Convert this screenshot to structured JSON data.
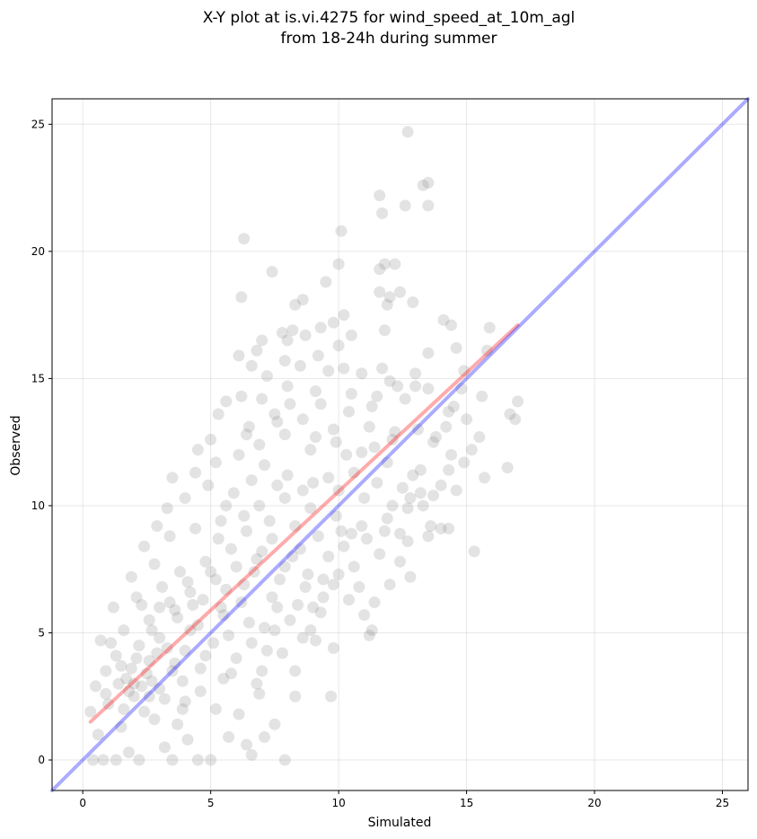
{
  "chart_data": {
    "type": "scatter",
    "title_lines": [
      "X-Y plot at is.vi.4275 for wind_speed_at_10m_agl",
      "from 18-24h during summer"
    ],
    "xlabel": "Simulated",
    "ylabel": "Observed",
    "xlim": [
      -1.2,
      26
    ],
    "ylim": [
      -1.2,
      26
    ],
    "xticks": [
      0,
      5,
      10,
      15,
      20,
      25
    ],
    "yticks": [
      0,
      5,
      10,
      15,
      20,
      25
    ],
    "grid": true,
    "series": [
      {
        "kind": "points",
        "color": "#808080",
        "points": [
          [
            12.7,
            24.7
          ],
          [
            13.5,
            22.7
          ],
          [
            13.3,
            22.6
          ],
          [
            11.6,
            22.2
          ],
          [
            12.6,
            21.8
          ],
          [
            13.5,
            21.8
          ],
          [
            11.7,
            21.5
          ],
          [
            10.1,
            20.8
          ],
          [
            6.3,
            20.5
          ],
          [
            11.8,
            19.5
          ],
          [
            12.2,
            19.5
          ],
          [
            10.0,
            19.5
          ],
          [
            7.4,
            19.2
          ],
          [
            11.6,
            19.3
          ],
          [
            9.5,
            18.8
          ],
          [
            11.6,
            18.4
          ],
          [
            12.4,
            18.4
          ],
          [
            6.2,
            18.2
          ],
          [
            8.6,
            18.1
          ],
          [
            12.0,
            18.2
          ],
          [
            8.3,
            17.9
          ],
          [
            12.9,
            18.0
          ],
          [
            10.2,
            17.5
          ],
          [
            11.9,
            17.9
          ],
          [
            14.1,
            17.3
          ],
          [
            14.4,
            17.1
          ],
          [
            15.9,
            17.0
          ],
          [
            11.8,
            16.9
          ],
          [
            8.2,
            16.9
          ],
          [
            8.7,
            16.7
          ],
          [
            9.8,
            17.2
          ],
          [
            7.8,
            16.8
          ],
          [
            9.3,
            17.0
          ],
          [
            7.0,
            16.5
          ],
          [
            8.0,
            16.5
          ],
          [
            10.5,
            16.7
          ],
          [
            13.5,
            16.0
          ],
          [
            14.6,
            16.2
          ],
          [
            6.8,
            16.1
          ],
          [
            6.1,
            15.9
          ],
          [
            10.0,
            16.3
          ],
          [
            6.6,
            15.5
          ],
          [
            9.2,
            15.9
          ],
          [
            7.9,
            15.7
          ],
          [
            10.2,
            15.4
          ],
          [
            9.6,
            15.3
          ],
          [
            11.7,
            15.4
          ],
          [
            12.0,
            14.9
          ],
          [
            13.0,
            15.2
          ],
          [
            14.9,
            15.3
          ],
          [
            15.6,
            14.3
          ],
          [
            17.0,
            14.1
          ],
          [
            16.7,
            13.6
          ],
          [
            16.9,
            13.4
          ],
          [
            15.5,
            12.7
          ],
          [
            15.2,
            12.2
          ],
          [
            14.5,
            13.9
          ],
          [
            14.3,
            13.7
          ],
          [
            13.5,
            14.6
          ],
          [
            13.0,
            14.7
          ],
          [
            12.6,
            14.2
          ],
          [
            11.5,
            14.3
          ],
          [
            10.5,
            14.4
          ],
          [
            9.1,
            14.5
          ],
          [
            8.0,
            14.7
          ],
          [
            7.0,
            14.2
          ],
          [
            6.2,
            14.3
          ],
          [
            5.6,
            14.1
          ],
          [
            5.3,
            13.6
          ],
          [
            6.5,
            13.1
          ],
          [
            7.6,
            13.3
          ],
          [
            8.6,
            13.4
          ],
          [
            9.8,
            13.0
          ],
          [
            11.2,
            13.1
          ],
          [
            12.2,
            12.9
          ],
          [
            13.7,
            12.5
          ],
          [
            14.4,
            12.0
          ],
          [
            14.9,
            11.7
          ],
          [
            15.7,
            11.1
          ],
          [
            16.6,
            11.5
          ],
          [
            14.0,
            10.8
          ],
          [
            13.7,
            10.4
          ],
          [
            13.2,
            10.5
          ],
          [
            12.8,
            10.3
          ],
          [
            13.6,
            9.2
          ],
          [
            14.0,
            9.1
          ],
          [
            14.3,
            9.1
          ],
          [
            13.5,
            8.8
          ],
          [
            12.7,
            8.6
          ],
          [
            12.4,
            7.8
          ],
          [
            12.8,
            7.2
          ],
          [
            12.0,
            6.9
          ],
          [
            11.4,
            6.2
          ],
          [
            11.0,
            5.7
          ],
          [
            11.3,
            5.1
          ],
          [
            11.2,
            4.9
          ],
          [
            15.3,
            8.2
          ],
          [
            9.8,
            4.4
          ],
          [
            9.7,
            2.5
          ],
          [
            8.3,
            2.5
          ],
          [
            7.5,
            1.4
          ],
          [
            7.1,
            0.9
          ],
          [
            7.9,
            0.0
          ],
          [
            6.6,
            0.2
          ],
          [
            6.4,
            0.6
          ],
          [
            5.7,
            0.9
          ],
          [
            5.0,
            0.0
          ],
          [
            4.5,
            0.0
          ],
          [
            3.5,
            0.0
          ],
          [
            2.2,
            0.0
          ],
          [
            1.3,
            0.0
          ],
          [
            0.4,
            0.0
          ],
          [
            0.8,
            0.0
          ],
          [
            1.8,
            0.3
          ],
          [
            3.2,
            0.5
          ],
          [
            4.1,
            0.8
          ],
          [
            3.7,
            1.4
          ],
          [
            2.8,
            1.6
          ],
          [
            1.5,
            1.3
          ],
          [
            0.6,
            1.0
          ],
          [
            0.3,
            1.9
          ],
          [
            1.0,
            2.2
          ],
          [
            2.0,
            2.5
          ],
          [
            3.0,
            2.8
          ],
          [
            4.0,
            2.3
          ],
          [
            5.2,
            2.0
          ],
          [
            6.1,
            1.8
          ],
          [
            6.9,
            2.6
          ],
          [
            5.5,
            3.2
          ],
          [
            4.6,
            3.6
          ],
          [
            3.5,
            3.5
          ],
          [
            2.6,
            3.9
          ],
          [
            1.7,
            3.2
          ],
          [
            0.9,
            3.5
          ],
          [
            0.5,
            2.9
          ],
          [
            1.3,
            4.1
          ],
          [
            2.2,
            4.5
          ],
          [
            3.0,
            4.8
          ],
          [
            4.0,
            4.3
          ],
          [
            5.1,
            4.6
          ],
          [
            6.0,
            4.0
          ],
          [
            7.0,
            3.5
          ],
          [
            7.8,
            4.2
          ],
          [
            8.6,
            4.8
          ],
          [
            7.5,
            5.1
          ],
          [
            6.5,
            5.4
          ],
          [
            5.5,
            5.7
          ],
          [
            4.5,
            5.3
          ],
          [
            3.6,
            5.9
          ],
          [
            2.6,
            5.5
          ],
          [
            1.6,
            5.1
          ],
          [
            0.7,
            4.7
          ],
          [
            1.2,
            6.0
          ],
          [
            2.1,
            6.4
          ],
          [
            3.1,
            6.8
          ],
          [
            4.2,
            6.6
          ],
          [
            5.2,
            7.1
          ],
          [
            6.3,
            6.9
          ],
          [
            7.4,
            6.4
          ],
          [
            8.4,
            6.1
          ],
          [
            9.3,
            5.8
          ],
          [
            10.4,
            6.3
          ],
          [
            9.8,
            6.9
          ],
          [
            8.8,
            7.3
          ],
          [
            7.9,
            7.6
          ],
          [
            6.8,
            7.9
          ],
          [
            5.8,
            8.3
          ],
          [
            4.8,
            7.8
          ],
          [
            3.8,
            7.4
          ],
          [
            2.8,
            7.7
          ],
          [
            1.9,
            7.2
          ],
          [
            2.4,
            8.4
          ],
          [
            3.4,
            8.8
          ],
          [
            4.4,
            9.1
          ],
          [
            5.4,
            9.4
          ],
          [
            6.4,
            9.0
          ],
          [
            7.4,
            8.7
          ],
          [
            8.5,
            8.3
          ],
          [
            9.6,
            8.0
          ],
          [
            10.6,
            7.6
          ],
          [
            11.6,
            8.1
          ],
          [
            12.4,
            8.9
          ],
          [
            11.9,
            9.5
          ],
          [
            10.9,
            9.2
          ],
          [
            9.9,
            9.6
          ],
          [
            8.9,
            9.9
          ],
          [
            7.9,
            10.3
          ],
          [
            6.9,
            10.0
          ],
          [
            5.9,
            10.5
          ],
          [
            4.9,
            10.8
          ],
          [
            4.0,
            10.3
          ],
          [
            3.3,
            9.9
          ],
          [
            2.9,
            9.2
          ],
          [
            4.4,
            11.3
          ],
          [
            5.2,
            11.7
          ],
          [
            6.1,
            12.0
          ],
          [
            7.1,
            11.6
          ],
          [
            8.0,
            11.2
          ],
          [
            9.0,
            10.9
          ],
          [
            10.0,
            10.6
          ],
          [
            11.0,
            10.3
          ],
          [
            12.1,
            10.0
          ],
          [
            12.9,
            11.2
          ],
          [
            11.9,
            11.7
          ],
          [
            10.9,
            12.1
          ],
          [
            9.9,
            12.5
          ],
          [
            8.9,
            12.2
          ],
          [
            7.9,
            12.8
          ],
          [
            6.9,
            12.4
          ],
          [
            5.0,
            12.6
          ],
          [
            3.5,
            11.1
          ],
          [
            4.5,
            12.2
          ],
          [
            9.3,
            14.0
          ],
          [
            10.4,
            13.7
          ],
          [
            11.3,
            13.9
          ],
          [
            12.3,
            14.7
          ],
          [
            7.2,
            15.1
          ],
          [
            8.5,
            15.5
          ],
          [
            10.9,
            15.2
          ],
          [
            13.2,
            11.4
          ],
          [
            14.6,
            10.6
          ],
          [
            12.7,
            9.9
          ],
          [
            11.1,
            8.7
          ],
          [
            10.2,
            8.4
          ],
          [
            9.4,
            7.1
          ],
          [
            10.8,
            6.8
          ],
          [
            9.0,
            6.0
          ],
          [
            8.1,
            5.5
          ],
          [
            7.1,
            5.2
          ],
          [
            6.6,
            4.6
          ],
          [
            5.7,
            4.9
          ],
          [
            4.8,
            4.1
          ],
          [
            3.9,
            3.1
          ],
          [
            3.2,
            2.4
          ],
          [
            2.4,
            1.9
          ],
          [
            1.6,
            2.0
          ],
          [
            0.9,
            2.6
          ],
          [
            1.9,
            3.6
          ],
          [
            2.7,
            3.1
          ],
          [
            2.3,
            2.9
          ],
          [
            2.0,
            3.0
          ],
          [
            2.5,
            3.4
          ],
          [
            1.8,
            2.7
          ],
          [
            2.9,
            4.2
          ],
          [
            3.3,
            4.4
          ],
          [
            2.1,
            4.0
          ],
          [
            1.4,
            3.0
          ],
          [
            2.6,
            2.5
          ],
          [
            3.6,
            3.8
          ],
          [
            4.2,
            5.1
          ],
          [
            3.4,
            6.2
          ],
          [
            2.3,
            6.1
          ],
          [
            1.1,
            4.6
          ],
          [
            4.7,
            6.3
          ],
          [
            5.4,
            6.0
          ],
          [
            6.2,
            6.2
          ],
          [
            5.0,
            7.4
          ],
          [
            4.1,
            7.0
          ],
          [
            3.0,
            6.0
          ],
          [
            4.3,
            6.1
          ],
          [
            5.6,
            6.7
          ],
          [
            6.7,
            7.4
          ],
          [
            7.7,
            7.1
          ],
          [
            8.2,
            8.0
          ],
          [
            7.0,
            8.2
          ],
          [
            6.0,
            7.6
          ],
          [
            5.3,
            8.7
          ],
          [
            6.3,
            9.6
          ],
          [
            7.3,
            9.4
          ],
          [
            8.3,
            9.2
          ],
          [
            9.2,
            8.8
          ],
          [
            10.1,
            9.0
          ],
          [
            7.6,
            10.8
          ],
          [
            6.6,
            11.0
          ],
          [
            5.6,
            10.0
          ],
          [
            8.6,
            10.6
          ],
          [
            9.6,
            11.1
          ],
          [
            10.6,
            11.3
          ],
          [
            11.5,
            10.9
          ],
          [
            6.4,
            12.8
          ],
          [
            7.5,
            13.6
          ],
          [
            8.1,
            14.0
          ],
          [
            9.1,
            12.7
          ],
          [
            10.3,
            12.0
          ],
          [
            11.4,
            12.3
          ],
          [
            12.1,
            12.6
          ],
          [
            13.1,
            13.0
          ],
          [
            13.8,
            12.7
          ],
          [
            2.7,
            5.1
          ],
          [
            3.7,
            5.6
          ],
          [
            1.5,
            3.7
          ],
          [
            3.9,
            2.0
          ],
          [
            4.6,
            2.7
          ],
          [
            5.8,
            3.4
          ],
          [
            6.8,
            3.0
          ],
          [
            7.2,
            4.3
          ],
          [
            8.3,
            3.5
          ],
          [
            8.9,
            5.1
          ],
          [
            9.1,
            4.7
          ],
          [
            7.6,
            6.0
          ],
          [
            8.7,
            6.8
          ],
          [
            9.4,
            6.4
          ],
          [
            10.0,
            7.3
          ],
          [
            10.5,
            8.9
          ],
          [
            11.8,
            9.0
          ],
          [
            12.5,
            10.7
          ],
          [
            13.3,
            10.0
          ],
          [
            14.3,
            11.4
          ],
          [
            14.2,
            13.1
          ],
          [
            15.0,
            13.4
          ],
          [
            15.8,
            16.1
          ],
          [
            14.8,
            14.6
          ]
        ]
      },
      {
        "kind": "line",
        "color": "#ff0000",
        "points": [
          [
            0.3,
            1.5
          ],
          [
            17.0,
            17.1
          ]
        ]
      },
      {
        "kind": "line",
        "color": "#0000ff",
        "points": [
          [
            -1.2,
            -1.2
          ],
          [
            26,
            26
          ]
        ]
      }
    ]
  }
}
